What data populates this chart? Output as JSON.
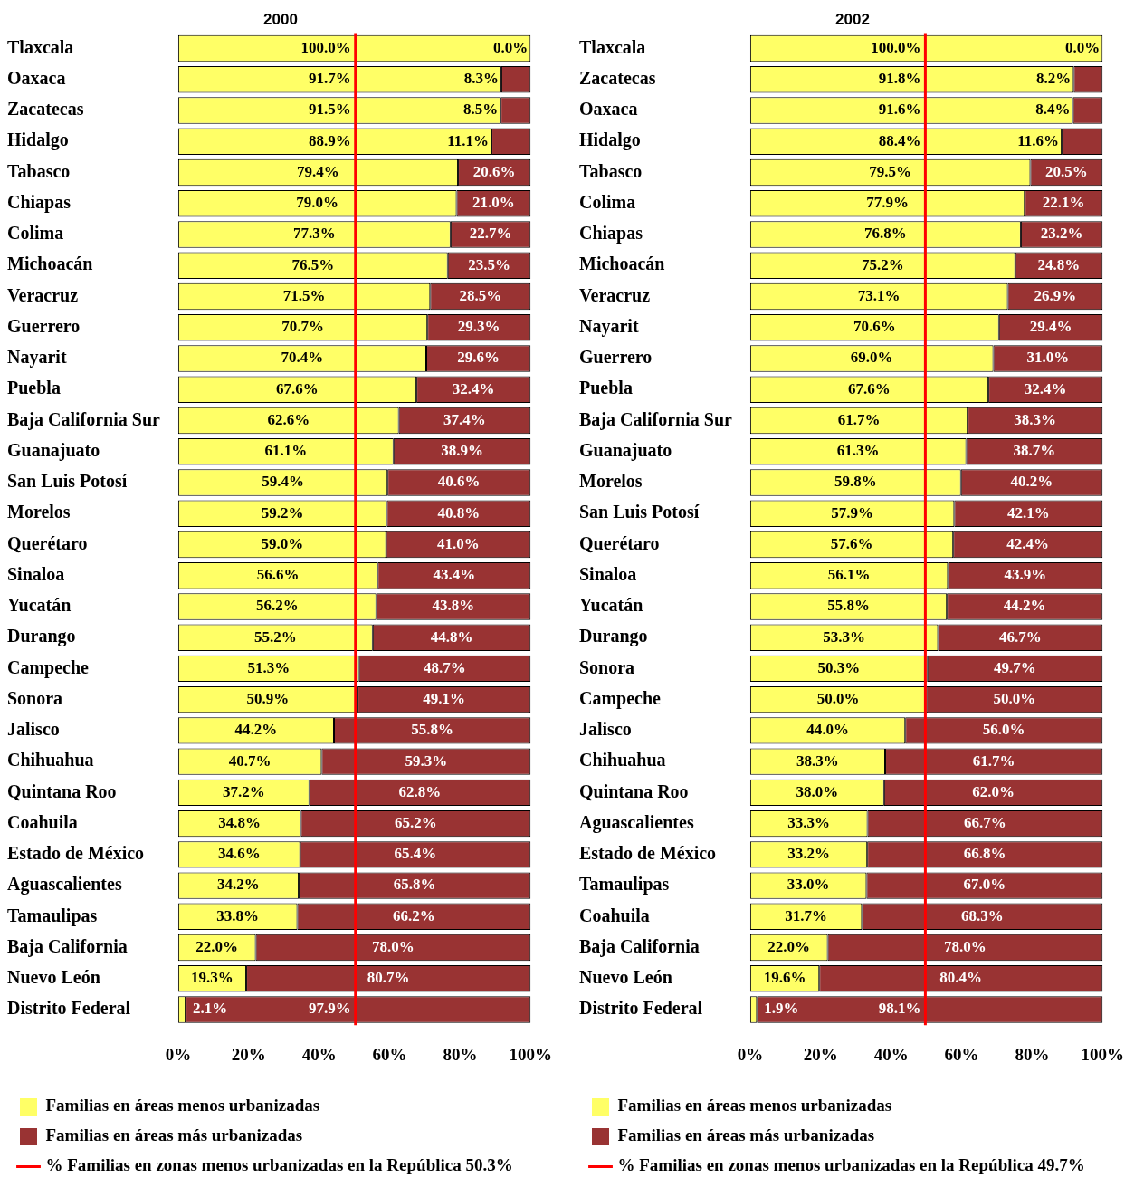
{
  "chart_data": [
    {
      "type": "bar",
      "title": "2000",
      "orientation": "horizontal",
      "stacked": true,
      "legend": "bottom",
      "categories": [
        "Tlaxcala",
        "Oaxaca",
        "Zacatecas",
        "Hidalgo",
        "Tabasco",
        "Chiapas",
        "Colima",
        "Michoacán",
        "Veracruz",
        "Guerrero",
        "Nayarit",
        "Puebla",
        "Baja California Sur",
        "Guanajuato",
        "San Luis Potosí",
        "Morelos",
        "Querétaro",
        "Sinaloa",
        "Yucatán",
        "Durango",
        "Campeche",
        "Sonora",
        "Jalisco",
        "Chihuahua",
        "Quintana Roo",
        "Coahuila",
        "Estado de México",
        "Aguascalientes",
        "Tamaulipas",
        "Baja California",
        "Nuevo León",
        "Distrito Federal"
      ],
      "series": [
        {
          "name": "Familias en áreas menos urbanizadas",
          "color": "#ffff66",
          "values": [
            100.0,
            91.7,
            91.5,
            88.9,
            79.4,
            79.0,
            77.3,
            76.5,
            71.5,
            70.7,
            70.4,
            67.6,
            62.6,
            61.1,
            59.4,
            59.2,
            59.0,
            56.6,
            56.2,
            55.2,
            51.3,
            50.9,
            44.2,
            40.7,
            37.2,
            34.8,
            34.6,
            34.2,
            33.8,
            22.0,
            19.3,
            2.1
          ],
          "value_labels": [
            "100.0%",
            "91.7%",
            "91.5%",
            "88.9%",
            "79.4%",
            "79.0%",
            "77.3%",
            "76.5%",
            "71.5%",
            "70.7%",
            "70.4%",
            "67.6%",
            "62.6%",
            "61.1%",
            "59.4%",
            "59.2%",
            "59.0%",
            "56.6%",
            "56.2%",
            "55.2%",
            "51.3%",
            "50.9%",
            "44.2%",
            "40.7%",
            "37.2%",
            "34.8%",
            "34.6%",
            "34.2%",
            "33.8%",
            "22.0%",
            "19.3%",
            "2.1%"
          ]
        },
        {
          "name": "Familias en áreas más urbanizadas",
          "color": "#993333",
          "values": [
            0.0,
            8.3,
            8.5,
            11.1,
            20.6,
            21.0,
            22.7,
            23.5,
            28.5,
            29.3,
            29.6,
            32.4,
            37.4,
            38.9,
            40.6,
            40.8,
            41.0,
            43.4,
            43.8,
            44.8,
            48.7,
            49.1,
            55.8,
            59.3,
            62.8,
            65.2,
            65.4,
            65.8,
            66.2,
            78.0,
            80.7,
            97.9
          ],
          "value_labels": [
            "0.0%",
            "8.3%",
            "8.5%",
            "11.1%",
            "20.6%",
            "21.0%",
            "22.7%",
            "23.5%",
            "28.5%",
            "29.3%",
            "29.6%",
            "32.4%",
            "37.4%",
            "38.9%",
            "40.6%",
            "40.8%",
            "41.0%",
            "43.4%",
            "43.8%",
            "44.8%",
            "48.7%",
            "49.1%",
            "55.8%",
            "59.3%",
            "62.8%",
            "65.2%",
            "65.4%",
            "65.8%",
            "66.2%",
            "78.0%",
            "80.7%",
            "97.9%"
          ]
        }
      ],
      "xlim": [
        0,
        100
      ],
      "xticks": [
        {
          "value": 0,
          "label": "0%"
        },
        {
          "value": 20,
          "label": "20%"
        },
        {
          "value": 40,
          "label": "40%"
        },
        {
          "value": 60,
          "label": "60%"
        },
        {
          "value": 80,
          "label": "80%"
        },
        {
          "value": 100,
          "label": "100%"
        }
      ],
      "ref_lines": [
        {
          "axis": "x",
          "value": 50.3,
          "label": "% Familias en zonas menos urbanizadas en la República 50.3%",
          "color": "#ff0000"
        }
      ]
    },
    {
      "type": "bar",
      "title": "2002",
      "orientation": "horizontal",
      "stacked": true,
      "legend": "bottom",
      "categories": [
        "Tlaxcala",
        "Zacatecas",
        "Oaxaca",
        "Hidalgo",
        "Tabasco",
        "Colima",
        "Chiapas",
        "Michoacán",
        "Veracruz",
        "Nayarit",
        "Guerrero",
        "Puebla",
        "Baja California Sur",
        "Guanajuato",
        "Morelos",
        "San Luis Potosí",
        "Querétaro",
        "Sinaloa",
        "Yucatán",
        "Durango",
        "Sonora",
        "Campeche",
        "Jalisco",
        "Chihuahua",
        "Quintana Roo",
        "Aguascalientes",
        "Estado de México",
        "Tamaulipas",
        "Coahuila",
        "Baja California",
        "Nuevo León",
        "Distrito Federal"
      ],
      "series": [
        {
          "name": "Familias en áreas menos urbanizadas",
          "color": "#ffff66",
          "values": [
            100.0,
            91.8,
            91.6,
            88.4,
            79.5,
            77.9,
            76.8,
            75.2,
            73.1,
            70.6,
            69.0,
            67.6,
            61.7,
            61.3,
            59.8,
            57.9,
            57.6,
            56.1,
            55.8,
            53.3,
            50.3,
            50.0,
            44.0,
            38.3,
            38.0,
            33.3,
            33.2,
            33.0,
            31.7,
            22.0,
            19.6,
            1.9
          ],
          "value_labels": [
            "100.0%",
            "91.8%",
            "91.6%",
            "88.4%",
            "79.5%",
            "77.9%",
            "76.8%",
            "75.2%",
            "73.1%",
            "70.6%",
            "69.0%",
            "67.6%",
            "61.7%",
            "61.3%",
            "59.8%",
            "57.9%",
            "57.6%",
            "56.1%",
            "55.8%",
            "53.3%",
            "50.3%",
            "50.0%",
            "44.0%",
            "38.3%",
            "38.0%",
            "33.3%",
            "33.2%",
            "33.0%",
            "31.7%",
            "22.0%",
            "19.6%",
            "1.9%"
          ]
        },
        {
          "name": "Familias en áreas más urbanizadas",
          "color": "#993333",
          "values": [
            0.0,
            8.2,
            8.4,
            11.6,
            20.5,
            22.1,
            23.2,
            24.8,
            26.9,
            29.4,
            31.0,
            32.4,
            38.3,
            38.7,
            40.2,
            42.1,
            42.4,
            43.9,
            44.2,
            46.7,
            49.7,
            50.0,
            56.0,
            61.7,
            62.0,
            66.7,
            66.8,
            67.0,
            68.3,
            78.0,
            80.4,
            98.1
          ],
          "value_labels": [
            "0.0%",
            "8.2%",
            "8.4%",
            "11.6%",
            "20.5%",
            "22.1%",
            "23.2%",
            "24.8%",
            "26.9%",
            "29.4%",
            "31.0%",
            "32.4%",
            "38.3%",
            "38.7%",
            "40.2%",
            "42.1%",
            "42.4%",
            "43.9%",
            "44.2%",
            "46.7%",
            "49.7%",
            "50.0%",
            "56.0%",
            "61.7%",
            "62.0%",
            "66.7%",
            "66.8%",
            "67.0%",
            "68.3%",
            "78.0%",
            "80.4%",
            "98.1%"
          ]
        }
      ],
      "xlim": [
        0,
        100
      ],
      "xticks": [
        {
          "value": 0,
          "label": "0%"
        },
        {
          "value": 20,
          "label": "20%"
        },
        {
          "value": 40,
          "label": "40%"
        },
        {
          "value": 60,
          "label": "60%"
        },
        {
          "value": 80,
          "label": "80%"
        },
        {
          "value": 100,
          "label": "100%"
        }
      ],
      "ref_lines": [
        {
          "axis": "x",
          "value": 49.7,
          "label": "% Familias en zonas menos urbanizadas en la República 49.7%",
          "color": "#ff0000"
        }
      ]
    }
  ]
}
